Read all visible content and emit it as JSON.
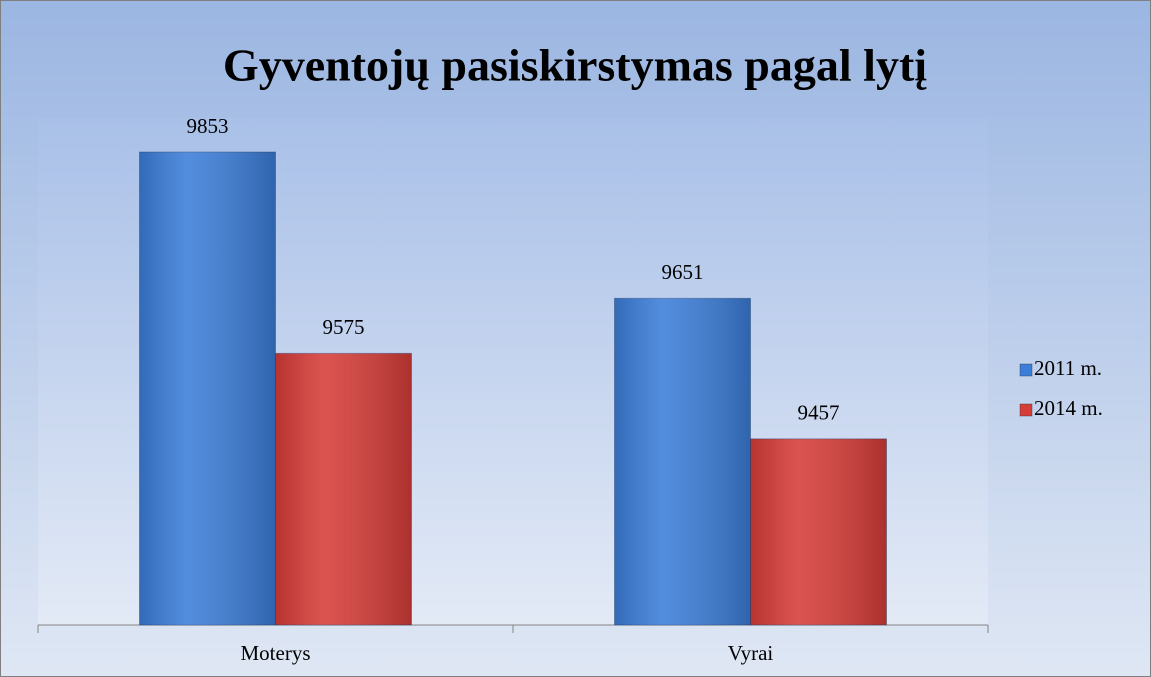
{
  "chart_data": {
    "type": "bar",
    "title": "Gyventojų pasiskirstymas pagal lytį",
    "categories": [
      "Moterys",
      "Vyrai"
    ],
    "series": [
      {
        "name": "2011 m.",
        "color": "#3b7dd8",
        "values": [
          9853,
          9651
        ]
      },
      {
        "name": "2014 m.",
        "color": "#d63c38",
        "values": [
          9575,
          9457
        ]
      }
    ],
    "ylim": [
      9200,
      9900
    ],
    "legend": "right"
  }
}
